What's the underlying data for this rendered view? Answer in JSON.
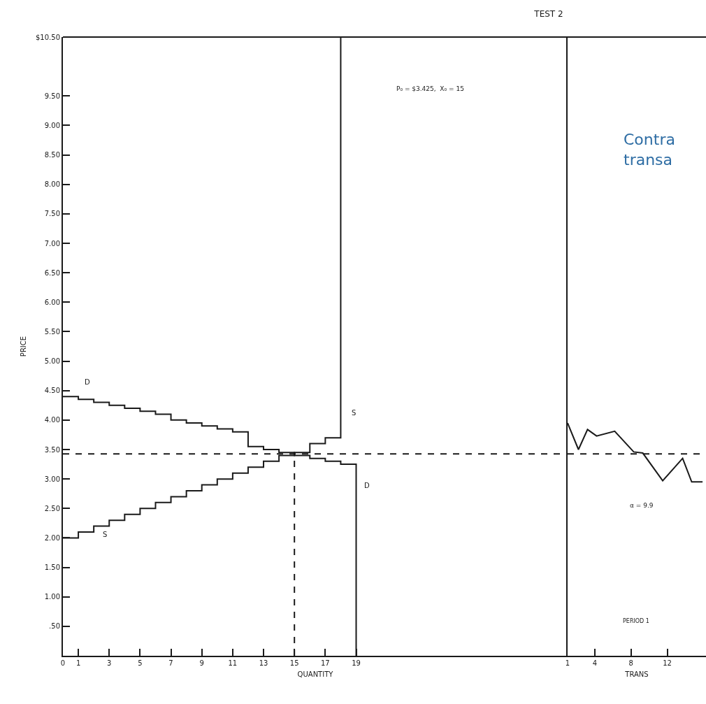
{
  "chart_data": [
    {
      "type": "step",
      "title": "TEST 2",
      "xlabel": "QUANTITY",
      "ylabel": "PRICE",
      "xlim": [
        0,
        32.7
      ],
      "xticks": [
        0,
        1,
        3,
        5,
        7,
        9,
        11,
        13,
        15,
        17,
        19
      ],
      "ylim": [
        0,
        10.5
      ],
      "yticks": [
        {
          "value": 0.5,
          "label": ".50"
        },
        {
          "value": 1,
          "label": "1.00"
        },
        {
          "value": 1.5,
          "label": "1.50"
        },
        {
          "value": 2,
          "label": "2.00"
        },
        {
          "value": 2.5,
          "label": "2.50"
        },
        {
          "value": 3,
          "label": "3.00"
        },
        {
          "value": 3.5,
          "label": "3.50"
        },
        {
          "value": 4,
          "label": "4.00"
        },
        {
          "value": 4.5,
          "label": "4.50"
        },
        {
          "value": 5,
          "label": "5.00"
        },
        {
          "value": 5.5,
          "label": "5.50"
        },
        {
          "value": 6,
          "label": "6.00"
        },
        {
          "value": 6.5,
          "label": "6.50"
        },
        {
          "value": 7,
          "label": "7.00"
        },
        {
          "value": 7.5,
          "label": "7.50"
        },
        {
          "value": 8,
          "label": "8.00"
        },
        {
          "value": 8.5,
          "label": "8.50"
        },
        {
          "value": 9,
          "label": "9.00"
        },
        {
          "value": 9.5,
          "label": "9.50"
        },
        {
          "value": 10.5,
          "label": "$10.50"
        }
      ],
      "series": [
        {
          "color": "#1a1a1a",
          "x": [
            0,
            1,
            2,
            3,
            4,
            5,
            6,
            7,
            8,
            9,
            10,
            11,
            12,
            13,
            14,
            15,
            16,
            17,
            18,
            19
          ],
          "values": [
            4.4,
            4.35,
            4.3,
            4.25,
            4.2,
            4.15,
            4.1,
            4.0,
            3.95,
            3.9,
            3.85,
            3.8,
            3.55,
            3.5,
            3.45,
            3.4,
            3.35,
            3.3,
            3.25,
            0
          ]
        },
        {
          "color": "#1a1a1a",
          "x": [
            0,
            1,
            2,
            3,
            4,
            5,
            6,
            7,
            8,
            9,
            10,
            11,
            12,
            13,
            14,
            15,
            16,
            17,
            18
          ],
          "values": [
            2.0,
            2.1,
            2.2,
            2.3,
            2.4,
            2.5,
            2.6,
            2.7,
            2.8,
            2.9,
            3.0,
            3.1,
            3.2,
            3.3,
            3.4,
            3.45,
            3.6,
            3.7,
            10.5
          ]
        }
      ],
      "ref_lines": [
        {
          "axis": "y",
          "value": 3.425,
          "color": "#1a1a1a",
          "line_style": "dashed"
        },
        {
          "axis": "x",
          "value": 15,
          "color": "#1a1a1a",
          "line_style": "dashed"
        }
      ],
      "annotations": [
        "D",
        "D",
        "S",
        "S",
        "P₀ = $3.425,  X₀ = 15"
      ],
      "marker": "none"
    },
    {
      "type": "line",
      "xlabel": "TRANS",
      "xlim": [
        1,
        16.28
      ],
      "xticks": [
        1,
        4,
        8,
        12
      ],
      "ylim": [
        0,
        10.5
      ],
      "tick_labels": "x",
      "series": [
        {
          "color": "#1a1a1a",
          "x": [
            1,
            2.2,
            3.2,
            4.2,
            6.2,
            8.3,
            9.3,
            11.5,
            13.7,
            14.7,
            15.9
          ],
          "values": [
            3.95,
            3.5,
            3.84,
            3.73,
            3.81,
            3.46,
            3.44,
            2.97,
            3.35,
            2.95,
            2.95
          ]
        }
      ],
      "ref_lines": [
        {
          "axis": "y",
          "value": 3.425,
          "color": "#1a1a1a",
          "line_style": "dashed"
        }
      ],
      "annotations": [
        "α = 9.9",
        "PERIOD 1",
        "Contra\ntransa"
      ],
      "marker": "none"
    }
  ]
}
